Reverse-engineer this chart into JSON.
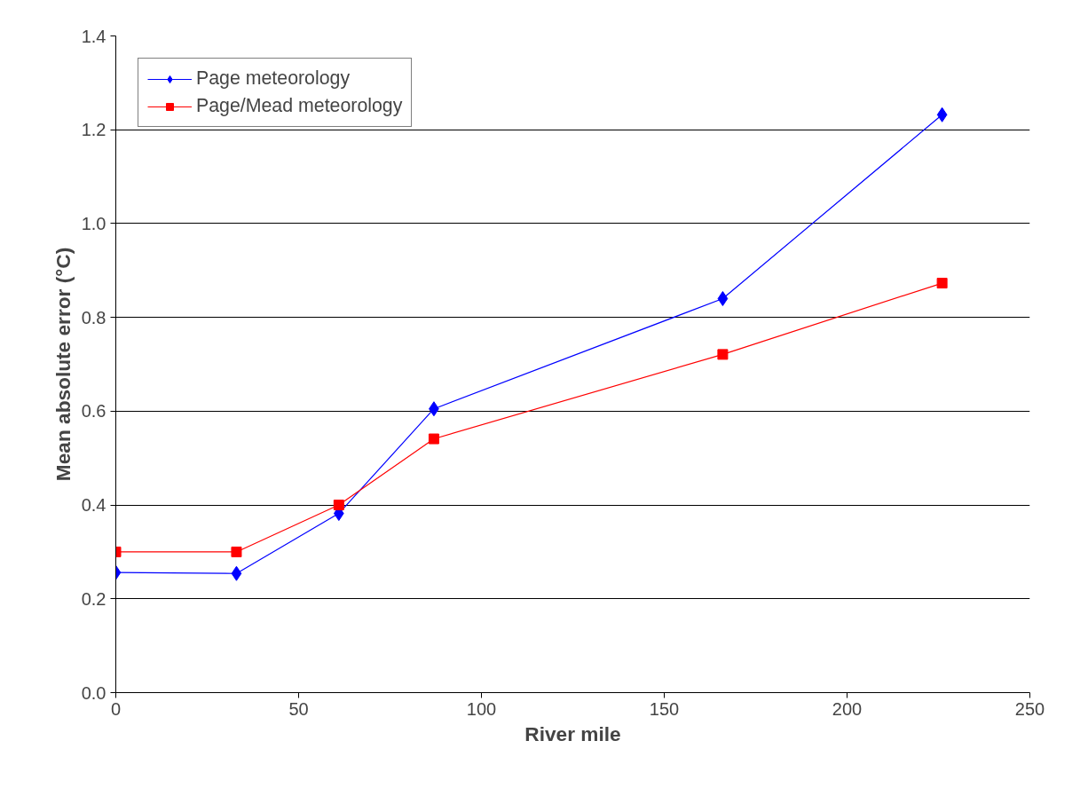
{
  "chart_data": {
    "type": "line",
    "xlabel": "River mile",
    "ylabel": "Mean absolute error (°C)",
    "xlim": [
      0,
      250
    ],
    "xticks": [
      0,
      50,
      100,
      150,
      200,
      250
    ],
    "ylim": [
      0,
      1.4
    ],
    "yticks": [
      {
        "value": 0,
        "label": "0.0"
      },
      {
        "value": 0.2,
        "label": "0.2"
      },
      {
        "value": 0.4,
        "label": "0.4"
      },
      {
        "value": 0.6,
        "label": "0.6"
      },
      {
        "value": 0.8,
        "label": "0.8"
      },
      {
        "value": 1.0,
        "label": "1.0"
      },
      {
        "value": 1.2,
        "label": "1.2"
      },
      {
        "value": 1.4,
        "label": "1.4"
      }
    ],
    "grid": "y",
    "legend": "top left",
    "series": [
      {
        "name": "Page meteorology",
        "color": "#0000ff",
        "marker": "diamond",
        "x": [
          0,
          33,
          61,
          87,
          166,
          226
        ],
        "values": [
          0.256,
          0.254,
          0.382,
          0.605,
          0.84,
          1.232
        ]
      },
      {
        "name": "Page/Mead meteorology",
        "color": "#ff0000",
        "marker": "square",
        "x": [
          0,
          33,
          61,
          87,
          166,
          226
        ],
        "values": [
          0.3,
          0.3,
          0.4,
          0.541,
          0.721,
          0.873
        ]
      }
    ]
  }
}
